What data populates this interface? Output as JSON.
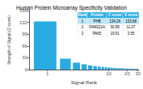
{
  "chart_data": {
    "type": "bar",
    "title": "Human Protein Microarray Specificity Validation",
    "xlabel": "Signal Rank",
    "ylabel": "Strength of Signal (Z score)",
    "x": [
      1,
      2,
      3,
      4,
      5,
      6,
      7,
      8,
      9,
      10,
      11,
      12,
      13,
      14,
      15,
      16,
      17,
      18,
      19,
      20,
      21,
      22,
      23,
      24,
      25,
      26,
      27,
      28,
      29,
      30
    ],
    "values": [
      134.26,
      30.58,
      19.51,
      15.0,
      12.0,
      10.0,
      8.5,
      7.5,
      6.8,
      6.2,
      5.7,
      5.3,
      4.9,
      4.6,
      4.3,
      4.1,
      3.9,
      3.7,
      3.5,
      3.3,
      3.2,
      3.1,
      3.0,
      2.9,
      2.8,
      2.7,
      2.6,
      2.5,
      2.4,
      2.3
    ],
    "color": "#29ABE2",
    "log": "x",
    "xlim": [
      0.5,
      31
    ],
    "xticks": [
      1,
      10,
      20,
      30
    ],
    "ylim": [
      0,
      165
    ],
    "yticks": [
      0,
      33,
      66,
      99,
      132,
      165
    ],
    "grid": false,
    "table": {
      "headers": [
        "Rank",
        "Protein",
        "Z score",
        "S score"
      ],
      "rows": [
        [
          "1",
          "PHB",
          "134.26",
          "133.68"
        ],
        [
          "2",
          "FAM221A",
          "30.58",
          "11.07"
        ],
        [
          "3",
          "PA65",
          "19.51",
          "3.55"
        ]
      ]
    }
  }
}
